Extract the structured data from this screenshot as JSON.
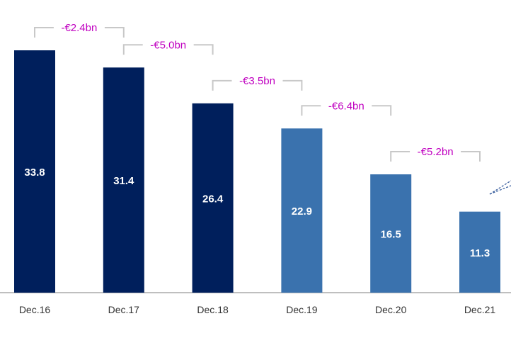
{
  "chart_data": {
    "type": "bar",
    "categories": [
      "Dec.16",
      "Dec.17",
      "Dec.18",
      "Dec.19",
      "Dec.20",
      "Dec.21"
    ],
    "values": [
      33.8,
      31.4,
      26.4,
      22.9,
      16.5,
      11.3
    ],
    "value_labels": [
      "33.8",
      "31.4",
      "26.4",
      "22.9",
      "16.5",
      "11.3"
    ],
    "bar_colors": [
      "#001f5c",
      "#001f5c",
      "#001f5c",
      "#3a72ae",
      "#3a72ae",
      "#3a72ae"
    ],
    "annotations": [
      {
        "from": "Dec.16",
        "to": "Dec.17",
        "text": "-€2.4bn"
      },
      {
        "from": "Dec.17",
        "to": "Dec.18",
        "text": "-€5.0bn"
      },
      {
        "from": "Dec.18",
        "to": "Dec.19",
        "text": "-€3.5bn"
      },
      {
        "from": "Dec.19",
        "to": "Dec.20",
        "text": "-€6.4bn"
      },
      {
        "from": "Dec.20",
        "to": "Dec.21",
        "text": "-€5.2bn"
      }
    ],
    "annotation_color": "#c000c0",
    "bracket_color": "#c8c8c8",
    "ylim": [
      0,
      34
    ],
    "grid": false,
    "title": "",
    "xlabel": "",
    "ylabel": ""
  }
}
